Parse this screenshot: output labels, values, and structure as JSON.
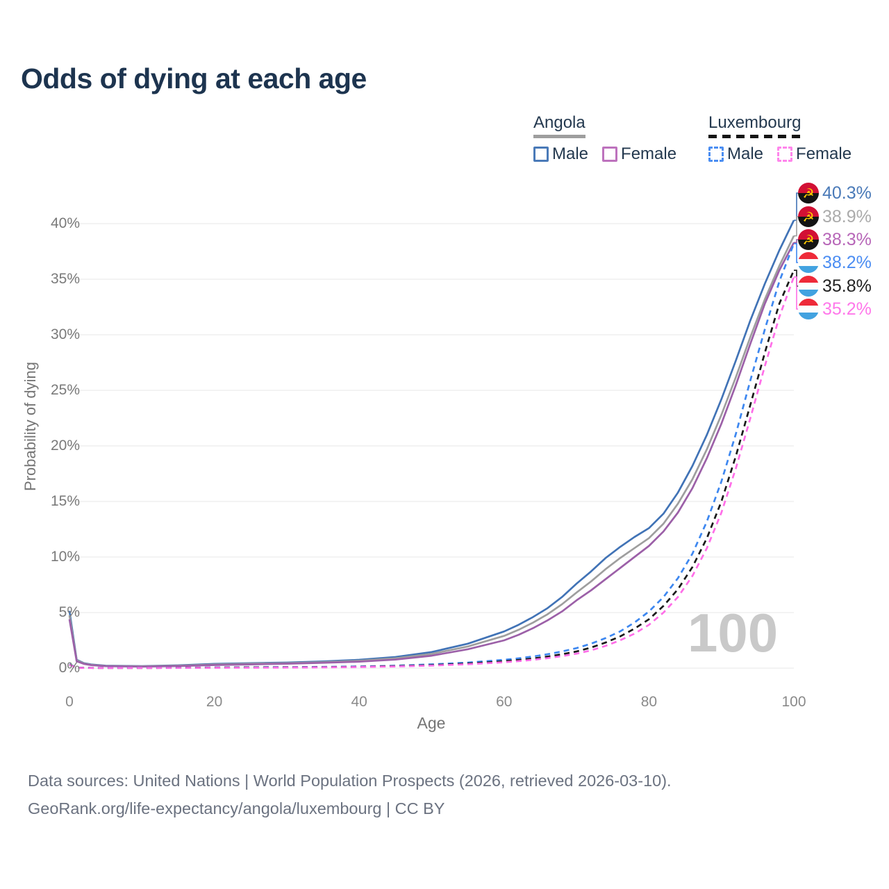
{
  "chart": {
    "title": "Odds of dying at each age",
    "watermark": "100",
    "y_axis_label": "Probability of dying",
    "x_axis_label": "Age"
  },
  "legend": {
    "groups": [
      {
        "country": "Angola",
        "line_style": "solid",
        "underline_color": "#9e9e9e",
        "items": [
          {
            "label": "Male",
            "color": "#4a7ab8",
            "dashed": false
          },
          {
            "label": "Female",
            "color": "#bd72bd",
            "dashed": false
          }
        ]
      },
      {
        "country": "Luxembourg",
        "line_style": "dashed",
        "underline_color": "#141414",
        "items": [
          {
            "label": "Male",
            "color": "#4b8ef2",
            "dashed": true
          },
          {
            "label": "Female",
            "color": "#ff86ec",
            "dashed": true
          }
        ]
      }
    ]
  },
  "chart_data": {
    "type": "line",
    "title": "Odds of dying at each age",
    "xlabel": "Age",
    "ylabel": "Probability of dying",
    "xlim": [
      0,
      100
    ],
    "ylim": [
      0,
      43
    ],
    "x_ticks": [
      0,
      20,
      40,
      60,
      80,
      100
    ],
    "y_ticks": [
      0,
      5,
      10,
      15,
      20,
      25,
      30,
      35,
      40
    ],
    "y_tick_suffix": "%",
    "grid": "horizontal-only",
    "legend_position": "top-right",
    "age_watermark": "100",
    "ages": [
      0,
      1,
      2,
      3,
      5,
      10,
      15,
      20,
      25,
      30,
      35,
      40,
      45,
      50,
      55,
      60,
      62,
      64,
      66,
      68,
      70,
      72,
      74,
      76,
      78,
      80,
      82,
      84,
      86,
      88,
      90,
      92,
      94,
      96,
      98,
      100
    ],
    "series": [
      {
        "name": "Angola Male",
        "country": "Angola",
        "sex": "Male",
        "flag": "angola",
        "color": "#4173b6",
        "label_color": "#4a7ab8",
        "dashed": false,
        "end_label": "40.3%",
        "end_value": 40.3,
        "values": [
          5.15,
          0.75,
          0.45,
          0.33,
          0.22,
          0.18,
          0.25,
          0.38,
          0.45,
          0.5,
          0.6,
          0.75,
          1.0,
          1.45,
          2.2,
          3.3,
          3.9,
          4.6,
          5.4,
          6.4,
          7.6,
          8.7,
          9.9,
          10.9,
          11.8,
          12.6,
          13.9,
          15.8,
          18.2,
          21.0,
          24.2,
          27.7,
          31.3,
          34.6,
          37.6,
          40.3
        ]
      },
      {
        "name": "Angola Both sexes",
        "country": "Angola",
        "sex": "All",
        "flag": "angola",
        "color": "#9e9e9e",
        "label_color": "#ababab",
        "dashed": false,
        "end_label": "38.9%",
        "end_value": 38.9,
        "values": [
          4.75,
          0.7,
          0.42,
          0.3,
          0.2,
          0.16,
          0.22,
          0.33,
          0.4,
          0.45,
          0.54,
          0.66,
          0.88,
          1.28,
          1.95,
          2.9,
          3.45,
          4.1,
          4.85,
          5.75,
          6.8,
          7.8,
          8.9,
          9.9,
          10.8,
          11.7,
          13.0,
          14.8,
          17.0,
          19.7,
          22.8,
          26.2,
          29.8,
          33.2,
          36.2,
          38.9
        ]
      },
      {
        "name": "Angola Female",
        "country": "Angola",
        "sex": "Female",
        "flag": "angola",
        "color": "#9c60a8",
        "label_color": "#b766b8",
        "dashed": false,
        "end_label": "38.3%",
        "end_value": 38.3,
        "values": [
          4.4,
          0.62,
          0.38,
          0.27,
          0.18,
          0.14,
          0.19,
          0.28,
          0.34,
          0.4,
          0.48,
          0.58,
          0.77,
          1.12,
          1.7,
          2.5,
          3.0,
          3.6,
          4.3,
          5.1,
          6.1,
          7.0,
          8.0,
          9.0,
          10.0,
          11.0,
          12.3,
          14.0,
          16.2,
          18.9,
          22.0,
          25.5,
          29.2,
          32.8,
          35.8,
          38.3
        ]
      },
      {
        "name": "Luxembourg Male",
        "country": "Luxembourg",
        "sex": "Male",
        "flag": "luxembourg",
        "color": "#3d87f0",
        "label_color": "#4b8df2",
        "dashed": true,
        "end_label": "38.2%",
        "end_value": 38.2,
        "values": [
          0.35,
          0.04,
          0.03,
          0.02,
          0.02,
          0.02,
          0.03,
          0.06,
          0.08,
          0.09,
          0.11,
          0.15,
          0.22,
          0.34,
          0.5,
          0.75,
          0.88,
          1.05,
          1.25,
          1.5,
          1.8,
          2.2,
          2.7,
          3.3,
          4.1,
          5.1,
          6.4,
          8.1,
          10.3,
          13.2,
          16.8,
          21.1,
          25.9,
          30.5,
          34.8,
          38.2
        ]
      },
      {
        "name": "Luxembourg Both sexes",
        "country": "Luxembourg",
        "sex": "All",
        "flag": "luxembourg",
        "color": "#1a1a1a",
        "label_color": "#222222",
        "dashed": true,
        "end_label": "35.8%",
        "end_value": 35.8,
        "values": [
          0.32,
          0.035,
          0.025,
          0.02,
          0.015,
          0.015,
          0.025,
          0.05,
          0.06,
          0.07,
          0.09,
          0.12,
          0.18,
          0.27,
          0.41,
          0.62,
          0.73,
          0.87,
          1.04,
          1.25,
          1.5,
          1.85,
          2.3,
          2.85,
          3.55,
          4.4,
          5.6,
          7.1,
          9.1,
          11.7,
          15.0,
          19.1,
          23.7,
          28.4,
          32.8,
          35.8
        ]
      },
      {
        "name": "Luxembourg Female",
        "country": "Luxembourg",
        "sex": "Female",
        "flag": "luxembourg",
        "color": "#ff6ee8",
        "label_color": "#ff77ea",
        "dashed": true,
        "end_label": "35.2%",
        "end_value": 35.2,
        "values": [
          0.3,
          0.03,
          0.02,
          0.015,
          0.01,
          0.01,
          0.02,
          0.03,
          0.04,
          0.05,
          0.07,
          0.1,
          0.15,
          0.23,
          0.35,
          0.53,
          0.63,
          0.75,
          0.9,
          1.08,
          1.3,
          1.6,
          2.0,
          2.5,
          3.1,
          3.9,
          5.0,
          6.4,
          8.3,
          10.8,
          14.0,
          18.0,
          22.5,
          27.2,
          31.6,
          35.2
        ]
      }
    ],
    "flag_colors": {
      "angola": {
        "top": "#d21034",
        "bottom": "#141414",
        "emblem": "#ffcb00"
      },
      "luxembourg": {
        "top": "#ee2a39",
        "middle": "#fdfdfd",
        "bottom": "#42a2e0"
      }
    }
  },
  "footer": {
    "line1": "Data sources: United Nations | World Population Prospects (2026, retrieved 2026-03-10).",
    "line2": "GeoRank.org/life-expectancy/angola/luxembourg | CC BY"
  }
}
